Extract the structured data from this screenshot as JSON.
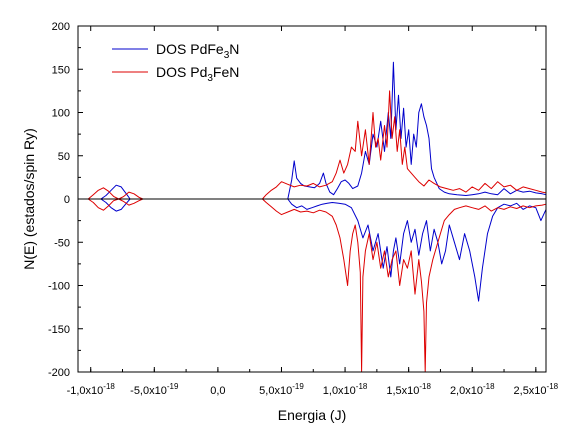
{
  "chart_data": {
    "type": "line",
    "xlabel": "Energia (J)",
    "ylabel": "N(E) (estados/spin Ry)",
    "xlim": [
      -1.1e-18,
      2.58e-18
    ],
    "ylim": [
      -200,
      200
    ],
    "grid": false,
    "legend_position": "top-left",
    "x_ticks": [
      {
        "value": -1e-18,
        "mant": "-1,0x10",
        "exp": "-18"
      },
      {
        "value": -5e-19,
        "mant": "-5,0x10",
        "exp": "-19"
      },
      {
        "value": 0.0,
        "mant": "0,0",
        "exp": ""
      },
      {
        "value": 5e-19,
        "mant": "5,0x10",
        "exp": "-19"
      },
      {
        "value": 1e-18,
        "mant": "1,0x10",
        "exp": "-18"
      },
      {
        "value": 1.5e-18,
        "mant": "1,5x10",
        "exp": "-18"
      },
      {
        "value": 2e-18,
        "mant": "2,0x10",
        "exp": "-18"
      },
      {
        "value": 2.5e-18,
        "mant": "2,5x10",
        "exp": "-18"
      }
    ],
    "y_ticks": [
      200,
      150,
      100,
      50,
      0,
      -50,
      -100,
      -150,
      -200
    ],
    "series": [
      {
        "name_main": "DOS PdFe",
        "name_sub": "3",
        "name_tail": "N",
        "color": "#0000cc",
        "up": [
          [
            -1.1e-18,
            0
          ],
          [
            -9.2e-19,
            0
          ],
          [
            -8.8e-19,
            4
          ],
          [
            -8.4e-19,
            10
          ],
          [
            -8e-19,
            16
          ],
          [
            -7.6e-19,
            14
          ],
          [
            -7.2e-19,
            6
          ],
          [
            -6.9e-19,
            0
          ],
          [
            4e-19,
            0
          ],
          [
            5.5e-19,
            0
          ],
          [
            5.8e-19,
            22
          ],
          [
            6e-19,
            44
          ],
          [
            6.2e-19,
            24
          ],
          [
            6.5e-19,
            18
          ],
          [
            6.8e-19,
            15
          ],
          [
            7.2e-19,
            14
          ],
          [
            7.6e-19,
            13
          ],
          [
            8e-19,
            18
          ],
          [
            8.3e-19,
            30
          ],
          [
            8.5e-19,
            18
          ],
          [
            8.8e-19,
            8
          ],
          [
            9.1e-19,
            5
          ],
          [
            9.4e-19,
            12
          ],
          [
            9.7e-19,
            20
          ],
          [
            1e-18,
            22
          ],
          [
            1.03e-18,
            18
          ],
          [
            1.06e-18,
            12
          ],
          [
            1.1e-18,
            15
          ],
          [
            1.13e-18,
            30
          ],
          [
            1.16e-18,
            55
          ],
          [
            1.19e-18,
            40
          ],
          [
            1.22e-18,
            75
          ],
          [
            1.25e-18,
            60
          ],
          [
            1.28e-18,
            90
          ],
          [
            1.31e-18,
            55
          ],
          [
            1.34e-18,
            100
          ],
          [
            1.36e-18,
            70
          ],
          [
            1.38e-18,
            158
          ],
          [
            1.4e-18,
            80
          ],
          [
            1.42e-18,
            120
          ],
          [
            1.44e-18,
            70
          ],
          [
            1.46e-18,
            105
          ],
          [
            1.48e-18,
            60
          ],
          [
            1.5e-18,
            80
          ],
          [
            1.52e-18,
            40
          ],
          [
            1.54e-18,
            75
          ],
          [
            1.56e-18,
            60
          ],
          [
            1.58e-18,
            100
          ],
          [
            1.6e-18,
            110
          ],
          [
            1.62e-18,
            95
          ],
          [
            1.64e-18,
            85
          ],
          [
            1.66e-18,
            70
          ],
          [
            1.68e-18,
            35
          ],
          [
            1.7e-18,
            25
          ],
          [
            1.74e-18,
            12
          ],
          [
            1.78e-18,
            8
          ],
          [
            1.82e-18,
            6
          ],
          [
            1.88e-18,
            5
          ],
          [
            1.95e-18,
            4
          ],
          [
            2e-18,
            5
          ],
          [
            2.05e-18,
            6
          ],
          [
            2.1e-18,
            8
          ],
          [
            2.15e-18,
            6
          ],
          [
            2.2e-18,
            5
          ],
          [
            2.25e-18,
            12
          ],
          [
            2.3e-18,
            6
          ],
          [
            2.35e-18,
            10
          ],
          [
            2.4e-18,
            8
          ],
          [
            2.45e-18,
            9
          ],
          [
            2.5e-18,
            7
          ],
          [
            2.55e-18,
            6
          ],
          [
            2.58e-18,
            5
          ]
        ],
        "down": [
          [
            -1.1e-18,
            0
          ],
          [
            -9.2e-19,
            0
          ],
          [
            -8.8e-19,
            -4
          ],
          [
            -8.4e-19,
            -10
          ],
          [
            -8e-19,
            -14
          ],
          [
            -7.6e-19,
            -12
          ],
          [
            -7.2e-19,
            -5
          ],
          [
            -6.9e-19,
            0
          ],
          [
            4e-19,
            0
          ],
          [
            5.5e-19,
            0
          ],
          [
            5.8e-19,
            -6
          ],
          [
            6.2e-19,
            -10
          ],
          [
            6.6e-19,
            -8
          ],
          [
            7e-19,
            -12
          ],
          [
            7.4e-19,
            -10
          ],
          [
            7.8e-19,
            -8
          ],
          [
            8.2e-19,
            -6
          ],
          [
            8.6e-19,
            -5
          ],
          [
            9e-19,
            -4
          ],
          [
            9.5e-19,
            -5
          ],
          [
            1e-18,
            -6
          ],
          [
            1.05e-18,
            -10
          ],
          [
            1.1e-18,
            -25
          ],
          [
            1.14e-18,
            -45
          ],
          [
            1.18e-18,
            -30
          ],
          [
            1.22e-18,
            -60
          ],
          [
            1.26e-18,
            -40
          ],
          [
            1.3e-18,
            -80
          ],
          [
            1.33e-18,
            -55
          ],
          [
            1.36e-18,
            -90
          ],
          [
            1.38e-18,
            -60
          ],
          [
            1.4e-18,
            -45
          ],
          [
            1.43e-18,
            -75
          ],
          [
            1.46e-18,
            -40
          ],
          [
            1.49e-18,
            -25
          ],
          [
            1.52e-18,
            -50
          ],
          [
            1.55e-18,
            -35
          ],
          [
            1.58e-18,
            -65
          ],
          [
            1.61e-18,
            -40
          ],
          [
            1.64e-18,
            -25
          ],
          [
            1.67e-18,
            -60
          ],
          [
            1.7e-18,
            -35
          ],
          [
            1.73e-18,
            -50
          ],
          [
            1.76e-18,
            -75
          ],
          [
            1.79e-18,
            -60
          ],
          [
            1.82e-18,
            -30
          ],
          [
            1.86e-18,
            -50
          ],
          [
            1.9e-18,
            -70
          ],
          [
            1.94e-18,
            -40
          ],
          [
            1.98e-18,
            -60
          ],
          [
            2.02e-18,
            -90
          ],
          [
            2.05e-18,
            -118
          ],
          [
            2.08e-18,
            -80
          ],
          [
            2.12e-18,
            -40
          ],
          [
            2.16e-18,
            -20
          ],
          [
            2.2e-18,
            -10
          ],
          [
            2.25e-18,
            -6
          ],
          [
            2.3e-18,
            -8
          ],
          [
            2.35e-18,
            -5
          ],
          [
            2.4e-18,
            -12
          ],
          [
            2.45e-18,
            -8
          ],
          [
            2.5e-18,
            -10
          ],
          [
            2.54e-18,
            -25
          ],
          [
            2.58e-18,
            -12
          ]
        ]
      },
      {
        "name_main": "DOS Pd",
        "name_sub": "3",
        "name_tail": "FeN",
        "color": "#dd0000",
        "up": [
          [
            -1.1e-18,
            0
          ],
          [
            -1.02e-18,
            0
          ],
          [
            -9.8e-19,
            5
          ],
          [
            -9.4e-19,
            10
          ],
          [
            -9e-19,
            13
          ],
          [
            -8.6e-19,
            9
          ],
          [
            -8.2e-19,
            3
          ],
          [
            -7.8e-19,
            0
          ],
          [
            -7.4e-19,
            3
          ],
          [
            -7e-19,
            8
          ],
          [
            -6.6e-19,
            6
          ],
          [
            -6.2e-19,
            2
          ],
          [
            -5.9e-19,
            0
          ],
          [
            3.5e-19,
            0
          ],
          [
            3.8e-19,
            5
          ],
          [
            4.2e-19,
            10
          ],
          [
            4.6e-19,
            14
          ],
          [
            5e-19,
            20
          ],
          [
            5.5e-19,
            17
          ],
          [
            6e-19,
            14
          ],
          [
            6.5e-19,
            16
          ],
          [
            7e-19,
            15
          ],
          [
            7.5e-19,
            18
          ],
          [
            8e-19,
            14
          ],
          [
            8.5e-19,
            16
          ],
          [
            9e-19,
            20
          ],
          [
            9.3e-19,
            30
          ],
          [
            9.6e-19,
            45
          ],
          [
            9.9e-19,
            30
          ],
          [
            1.02e-18,
            40
          ],
          [
            1.05e-18,
            60
          ],
          [
            1.08e-18,
            55
          ],
          [
            1.1e-18,
            90
          ],
          [
            1.13e-18,
            50
          ],
          [
            1.16e-18,
            80
          ],
          [
            1.19e-18,
            40
          ],
          [
            1.22e-18,
            100
          ],
          [
            1.24e-18,
            60
          ],
          [
            1.26e-18,
            70
          ],
          [
            1.28e-18,
            45
          ],
          [
            1.31e-18,
            85
          ],
          [
            1.33e-18,
            60
          ],
          [
            1.35e-18,
            125
          ],
          [
            1.37e-18,
            70
          ],
          [
            1.39e-18,
            95
          ],
          [
            1.41e-18,
            55
          ],
          [
            1.43e-18,
            80
          ],
          [
            1.45e-18,
            40
          ],
          [
            1.47e-18,
            60
          ],
          [
            1.49e-18,
            35
          ],
          [
            1.52e-18,
            30
          ],
          [
            1.55e-18,
            25
          ],
          [
            1.58e-18,
            20
          ],
          [
            1.62e-18,
            15
          ],
          [
            1.66e-18,
            22
          ],
          [
            1.7e-18,
            18
          ],
          [
            1.75e-18,
            14
          ],
          [
            1.8e-18,
            12
          ],
          [
            1.85e-18,
            10
          ],
          [
            1.9e-18,
            12
          ],
          [
            1.95e-18,
            8
          ],
          [
            2e-18,
            14
          ],
          [
            2.05e-18,
            10
          ],
          [
            2.1e-18,
            18
          ],
          [
            2.15e-18,
            12
          ],
          [
            2.2e-18,
            20
          ],
          [
            2.25e-18,
            14
          ],
          [
            2.3e-18,
            16
          ],
          [
            2.35e-18,
            10
          ],
          [
            2.4e-18,
            14
          ],
          [
            2.45e-18,
            12
          ],
          [
            2.5e-18,
            10
          ],
          [
            2.55e-18,
            8
          ],
          [
            2.58e-18,
            7
          ]
        ],
        "down": [
          [
            -1.1e-18,
            0
          ],
          [
            -1.02e-18,
            0
          ],
          [
            -9.8e-19,
            -4
          ],
          [
            -9.4e-19,
            -10
          ],
          [
            -9e-19,
            -13
          ],
          [
            -8.6e-19,
            -8
          ],
          [
            -8.2e-19,
            -2
          ],
          [
            -7.8e-19,
            0
          ],
          [
            -7.4e-19,
            -3
          ],
          [
            -7e-19,
            -7
          ],
          [
            -6.6e-19,
            -5
          ],
          [
            -6.2e-19,
            -2
          ],
          [
            -5.9e-19,
            0
          ],
          [
            3.5e-19,
            0
          ],
          [
            3.8e-19,
            -4
          ],
          [
            4.2e-19,
            -9
          ],
          [
            4.6e-19,
            -14
          ],
          [
            5e-19,
            -18
          ],
          [
            5.5e-19,
            -15
          ],
          [
            6e-19,
            -12
          ],
          [
            6.5e-19,
            -15
          ],
          [
            7e-19,
            -14
          ],
          [
            7.5e-19,
            -16
          ],
          [
            8e-19,
            -13
          ],
          [
            8.5e-19,
            -15
          ],
          [
            9e-19,
            -20
          ],
          [
            9.3e-19,
            -30
          ],
          [
            9.6e-19,
            -45
          ],
          [
            9.9e-19,
            -70
          ],
          [
            1.02e-18,
            -100
          ],
          [
            1.04e-18,
            -60
          ],
          [
            1.06e-18,
            -40
          ],
          [
            1.08e-18,
            -30
          ],
          [
            1.1e-18,
            -50
          ],
          [
            1.12e-18,
            -85
          ],
          [
            1.13e-18,
            -200
          ],
          [
            1.14e-18,
            -90
          ],
          [
            1.16e-18,
            -60
          ],
          [
            1.19e-18,
            -40
          ],
          [
            1.22e-18,
            -70
          ],
          [
            1.25e-18,
            -50
          ],
          [
            1.28e-18,
            -80
          ],
          [
            1.31e-18,
            -60
          ],
          [
            1.34e-18,
            -90
          ],
          [
            1.37e-18,
            -70
          ],
          [
            1.4e-18,
            -60
          ],
          [
            1.43e-18,
            -100
          ],
          [
            1.46e-18,
            -70
          ],
          [
            1.49e-18,
            -80
          ],
          [
            1.52e-18,
            -60
          ],
          [
            1.55e-18,
            -110
          ],
          [
            1.58e-18,
            -70
          ],
          [
            1.6e-18,
            -95
          ],
          [
            1.62e-18,
            -130
          ],
          [
            1.63e-18,
            -200
          ],
          [
            1.64e-18,
            -120
          ],
          [
            1.66e-18,
            -90
          ],
          [
            1.69e-18,
            -70
          ],
          [
            1.72e-18,
            -55
          ],
          [
            1.75e-18,
            -40
          ],
          [
            1.78e-18,
            -25
          ],
          [
            1.82e-18,
            -18
          ],
          [
            1.86e-18,
            -12
          ],
          [
            1.9e-18,
            -10
          ],
          [
            1.95e-18,
            -8
          ],
          [
            2e-18,
            -10
          ],
          [
            2.05e-18,
            -12
          ],
          [
            2.1e-18,
            -8
          ],
          [
            2.15e-18,
            -14
          ],
          [
            2.2e-18,
            -10
          ],
          [
            2.25e-18,
            -12
          ],
          [
            2.3e-18,
            -9
          ],
          [
            2.35e-18,
            -11
          ],
          [
            2.4e-18,
            -8
          ],
          [
            2.45e-18,
            -10
          ],
          [
            2.5e-18,
            -8
          ],
          [
            2.55e-18,
            -7
          ],
          [
            2.58e-18,
            -6
          ]
        ]
      }
    ]
  }
}
